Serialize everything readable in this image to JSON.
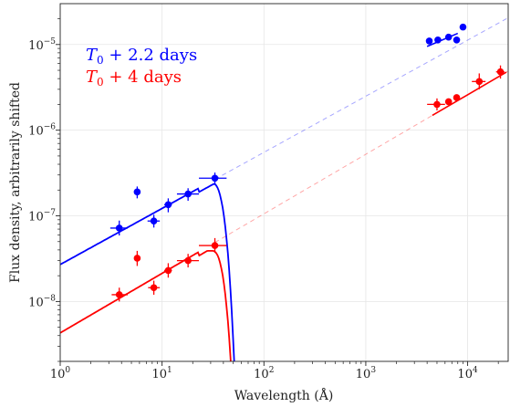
{
  "chart_data": {
    "type": "scatter",
    "xscale": "log",
    "yscale": "log",
    "xlim": [
      1,
      25000
    ],
    "ylim": [
      2e-09,
      3e-05
    ],
    "grid": true,
    "legend_position": "top-left",
    "xlabel": "Wavelength (Å)",
    "ylabel": "Flux density, arbitrarily shifted",
    "x_ticks": [
      {
        "value": 1,
        "base": "10",
        "exp": "0"
      },
      {
        "value": 10,
        "base": "10",
        "exp": "1"
      },
      {
        "value": 100,
        "base": "10",
        "exp": "2"
      },
      {
        "value": 1000,
        "base": "10",
        "exp": "3"
      },
      {
        "value": 10000,
        "base": "10",
        "exp": "4"
      }
    ],
    "y_ticks": [
      {
        "value": 1e-08,
        "base": "10",
        "exp": "−8"
      },
      {
        "value": 1e-07,
        "base": "10",
        "exp": "−7"
      },
      {
        "value": 1e-06,
        "base": "10",
        "exp": "−6"
      },
      {
        "value": 1e-05,
        "base": "10",
        "exp": "−5"
      }
    ],
    "series": [
      {
        "name": "T0 + 2.2 days",
        "legend_label": {
          "T": "T",
          "sub": "0",
          "rest": " + 2.2 days"
        },
        "color": "#0000ff",
        "points": [
          {
            "x": 3.8,
            "y": 7.2e-08,
            "xerr": [
              3.1,
              4.6
            ],
            "yerr": [
              5.9e-08,
              8.8e-08
            ]
          },
          {
            "x": 5.7,
            "y": 1.9e-07,
            "xerr": [
              5.5,
              5.9
            ],
            "yerr": [
              1.6e-07,
              2.2e-07
            ]
          },
          {
            "x": 8.3,
            "y": 8.7e-08,
            "xerr": [
              7.2,
              9.5
            ],
            "yerr": [
              7.3e-08,
              1.03e-07
            ]
          },
          {
            "x": 11.5,
            "y": 1.35e-07,
            "xerr": [
              10.5,
              12.5
            ],
            "yerr": [
              1.1e-07,
              1.6e-07
            ]
          },
          {
            "x": 18,
            "y": 1.8e-07,
            "xerr": [
              14,
              23
            ],
            "yerr": [
              1.5e-07,
              2.1e-07
            ]
          },
          {
            "x": 33,
            "y": 2.75e-07,
            "xerr": [
              23,
              43
            ],
            "yerr": [
              2.3e-07,
              3.2e-07
            ]
          },
          {
            "x": 4200,
            "y": 1.1e-05
          },
          {
            "x": 5100,
            "y": 1.13e-05
          },
          {
            "x": 6500,
            "y": 1.22e-05
          },
          {
            "x": 7800,
            "y": 1.13e-05
          },
          {
            "x": 9000,
            "y": 1.6e-05
          }
        ],
        "powerlaw": {
          "x0": 1,
          "y0": 2.7e-08,
          "slope": 0.655
        },
        "cutoff_peak": {
          "x": 33,
          "y": 2.4e-07
        },
        "fit_segment": {
          "x": [
            4000,
            8000
          ],
          "y": [
            9.5e-06,
            1.35e-05
          ]
        }
      },
      {
        "name": "T0 + 4 days",
        "legend_label": {
          "T": "T",
          "sub": "0",
          "rest": " + 4 days"
        },
        "color": "#ff0000",
        "points": [
          {
            "x": 3.8,
            "y": 1.2e-08,
            "xerr": [
              3.2,
              4.6
            ],
            "yerr": [
              1e-08,
              1.45e-08
            ]
          },
          {
            "x": 5.7,
            "y": 3.2e-08,
            "xerr": [
              5.5,
              5.9
            ],
            "yerr": [
              2.6e-08,
              3.9e-08
            ]
          },
          {
            "x": 8.3,
            "y": 1.45e-08,
            "xerr": [
              7.3,
              9.5
            ],
            "yerr": [
              1.2e-08,
              1.75e-08
            ]
          },
          {
            "x": 11.5,
            "y": 2.3e-08,
            "xerr": [
              10.5,
              12.5
            ],
            "yerr": [
              1.9e-08,
              2.8e-08
            ]
          },
          {
            "x": 18,
            "y": 3e-08,
            "xerr": [
              14,
              23
            ],
            "yerr": [
              2.5e-08,
              3.6e-08
            ]
          },
          {
            "x": 33,
            "y": 4.5e-08,
            "xerr": [
              23,
              43
            ],
            "yerr": [
              3.7e-08,
              5.5e-08
            ]
          },
          {
            "x": 5000,
            "y": 2e-06,
            "xerr": [
              4000,
              6000
            ],
            "yerr": [
              1.7e-06,
              2.35e-06
            ]
          },
          {
            "x": 6500,
            "y": 2.15e-06
          },
          {
            "x": 7800,
            "y": 2.4e-06
          },
          {
            "x": 13000,
            "y": 3.7e-06,
            "xerr": [
              11000,
              15000
            ],
            "yerr": [
              3e-06,
              4.6e-06
            ]
          },
          {
            "x": 21000,
            "y": 4.8e-06,
            "xerr": [
              19000,
              23000
            ],
            "yerr": [
              4e-06,
              5.7e-06
            ]
          }
        ],
        "powerlaw": {
          "x0": 1,
          "y0": 4.3e-09,
          "slope": 0.695
        },
        "cutoff_peak": {
          "x": 33,
          "y": 3.9e-08
        }
      }
    ]
  }
}
